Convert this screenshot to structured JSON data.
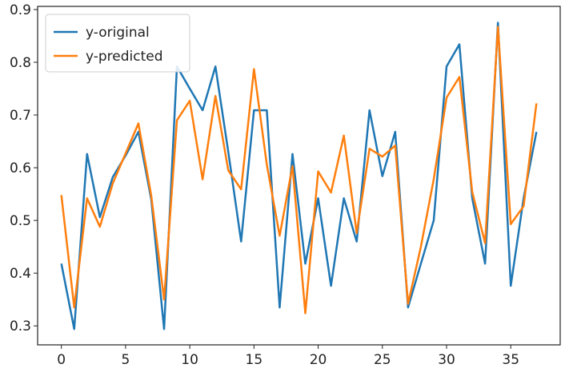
{
  "chart_data": {
    "type": "line",
    "x": [
      0,
      1,
      2,
      3,
      4,
      5,
      6,
      7,
      8,
      9,
      10,
      11,
      12,
      13,
      14,
      15,
      16,
      17,
      18,
      19,
      20,
      21,
      22,
      23,
      24,
      25,
      26,
      27,
      28,
      29,
      30,
      31,
      32,
      33,
      34,
      35,
      36,
      37
    ],
    "series": [
      {
        "name": "y-original",
        "color": "#1f77b4",
        "values": [
          0.418,
          0.294,
          0.626,
          0.506,
          0.582,
          0.623,
          0.668,
          0.54,
          0.294,
          0.792,
          0.75,
          0.709,
          0.792,
          0.63,
          0.46,
          0.709,
          0.709,
          0.335,
          0.626,
          0.418,
          0.542,
          0.376,
          0.542,
          0.46,
          0.709,
          0.584,
          0.668,
          0.335,
          0.418,
          0.5,
          0.792,
          0.834,
          0.542,
          0.418,
          0.875,
          0.376,
          0.542,
          0.668
        ]
      },
      {
        "name": "y-predicted",
        "color": "#ff7f0e",
        "values": [
          0.548,
          0.335,
          0.542,
          0.488,
          0.57,
          0.627,
          0.684,
          0.547,
          0.35,
          0.69,
          0.727,
          0.578,
          0.736,
          0.595,
          0.559,
          0.787,
          0.606,
          0.471,
          0.603,
          0.324,
          0.593,
          0.553,
          0.661,
          0.476,
          0.636,
          0.621,
          0.642,
          0.342,
          0.45,
          0.578,
          0.733,
          0.772,
          0.554,
          0.457,
          0.867,
          0.493,
          0.527,
          0.722
        ]
      }
    ],
    "xlim": [
      -1.85,
      38.85
    ],
    "xticks": [
      0,
      5,
      10,
      15,
      20,
      25,
      30,
      35
    ],
    "ylim": [
      0.264,
      0.906
    ],
    "yticks": [
      0.3,
      0.4,
      0.5,
      0.6,
      0.7,
      0.8,
      0.9
    ],
    "legend": "upper-left"
  }
}
